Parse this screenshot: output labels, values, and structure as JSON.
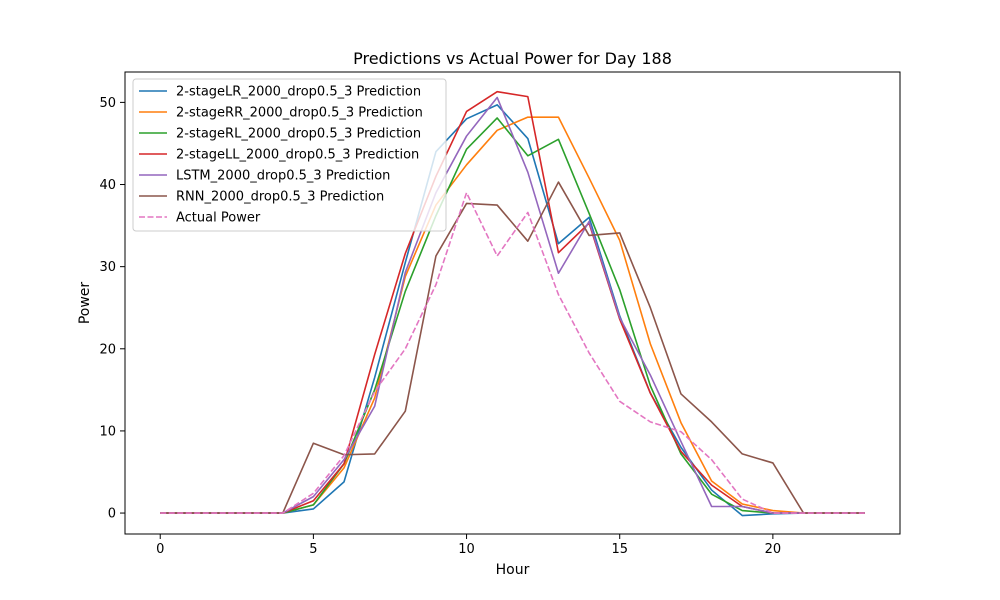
{
  "chart_data": {
    "type": "line",
    "title": "Predictions vs Actual Power for Day 188",
    "xlabel": "Hour",
    "ylabel": "Power",
    "xlim": [
      -1.15,
      24.15
    ],
    "ylim": [
      -2.55,
      53.7
    ],
    "xticks": [
      0,
      5,
      10,
      15,
      20
    ],
    "yticks": [
      0,
      10,
      20,
      30,
      40,
      50
    ],
    "grid": false,
    "legend_position": "upper-left",
    "x": [
      0,
      1,
      2,
      3,
      4,
      5,
      6,
      7,
      8,
      9,
      10,
      11,
      12,
      13,
      14,
      15,
      16,
      17,
      18,
      19,
      20,
      21,
      22,
      23
    ],
    "series": [
      {
        "name": "2-stageLR_2000_drop0.5_3 Prediction",
        "color": "#1f77b4",
        "dash": "solid",
        "values": [
          0,
          0,
          0,
          0,
          0,
          0.5,
          3.8,
          16.5,
          30.5,
          44,
          48,
          49.7,
          45.6,
          32.8,
          36,
          24,
          14.6,
          8,
          2.8,
          -0.3,
          -0.1,
          0,
          0,
          0
        ]
      },
      {
        "name": "2-stageRR_2000_drop0.5_3 Prediction",
        "color": "#ff7f0e",
        "dash": "solid",
        "values": [
          0,
          0,
          0,
          0,
          0,
          1,
          5.5,
          14,
          28.8,
          37.5,
          42.4,
          46.6,
          48.2,
          48.2,
          40.8,
          33.2,
          20.6,
          11,
          3.9,
          1.1,
          0.3,
          0,
          0,
          0
        ]
      },
      {
        "name": "2-stageRL_2000_drop0.5_3 Prediction",
        "color": "#2ca02c",
        "dash": "solid",
        "values": [
          0,
          0,
          0,
          0,
          0,
          1,
          6,
          15,
          27,
          36.2,
          44.3,
          48.1,
          43.5,
          45.5,
          36.5,
          27.2,
          15.5,
          7.2,
          2.3,
          0.3,
          0,
          0,
          0,
          0
        ]
      },
      {
        "name": "2-stageLL_2000_drop0.5_3 Prediction",
        "color": "#d62728",
        "dash": "solid",
        "values": [
          0,
          0,
          0,
          0,
          0,
          1.5,
          6,
          19.3,
          31.6,
          41,
          48.9,
          51.3,
          50.7,
          31.7,
          35.3,
          23.6,
          14.6,
          7.5,
          3.4,
          0.8,
          0,
          0,
          0,
          0
        ]
      },
      {
        "name": "LSTM_2000_drop0.5_3 Prediction",
        "color": "#9467bd",
        "dash": "solid",
        "values": [
          0,
          0,
          0,
          0,
          0,
          2,
          6.5,
          13,
          29.3,
          39,
          45.9,
          50.6,
          41.5,
          29.2,
          35.5,
          23.8,
          16.8,
          8.7,
          0.8,
          0.8,
          0,
          0,
          0,
          0
        ]
      },
      {
        "name": "RNN_2000_drop0.5_3 Prediction",
        "color": "#8c564b",
        "dash": "solid",
        "values": [
          0,
          0,
          0,
          0,
          0,
          8.5,
          7.1,
          7.2,
          12.4,
          31.3,
          37.7,
          37.5,
          33.1,
          40.3,
          33.8,
          34.1,
          25,
          14.5,
          11.1,
          7.2,
          6.1,
          0,
          0,
          0
        ]
      },
      {
        "name": "Actual Power",
        "color": "#e377c2",
        "dash": "dashed",
        "values": [
          0,
          0,
          0,
          0,
          0,
          2.4,
          7,
          14.8,
          20,
          27.8,
          39,
          31.3,
          36.6,
          26.6,
          19.5,
          13.6,
          11.1,
          9.9,
          6.5,
          1.7,
          0,
          0,
          0,
          0
        ]
      }
    ]
  }
}
